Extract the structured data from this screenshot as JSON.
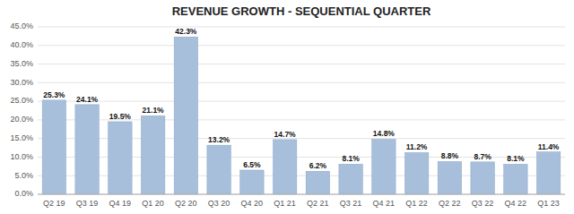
{
  "chart_data": {
    "type": "bar",
    "title": "REVENUE GROWTH - SEQUENTIAL QUARTER",
    "categories": [
      "Q2 19",
      "Q3 19",
      "Q4 19",
      "Q1 20",
      "Q2 20",
      "Q3 20",
      "Q4 20",
      "Q1 21",
      "Q2 21",
      "Q3 21",
      "Q4 21",
      "Q1 22",
      "Q2 22",
      "Q3 22",
      "Q4 22",
      "Q1 23"
    ],
    "values": [
      25.3,
      24.1,
      19.5,
      21.1,
      42.3,
      13.2,
      6.5,
      14.7,
      6.2,
      8.1,
      14.8,
      11.2,
      8.8,
      8.7,
      8.1,
      11.4
    ],
    "value_labels": [
      "25.3%",
      "24.1%",
      "19.5%",
      "21.1%",
      "42.3%",
      "13.2%",
      "6.5%",
      "14.7%",
      "6.2%",
      "8.1%",
      "14.8%",
      "11.2%",
      "8.8%",
      "8.7%",
      "8.1%",
      "11.4%"
    ],
    "data_labels": true,
    "color": "#a8bfdc",
    "ylim": [
      0,
      45
    ],
    "yticks": [
      {
        "value": 0.0,
        "label": "0.0%"
      },
      {
        "value": 5.0,
        "label": "5.0%"
      },
      {
        "value": 10.0,
        "label": "10.0%"
      },
      {
        "value": 15.0,
        "label": "15.0%"
      },
      {
        "value": 20.0,
        "label": "20.0%"
      },
      {
        "value": 25.0,
        "label": "25.0%"
      },
      {
        "value": 30.0,
        "label": "30.0%"
      },
      {
        "value": 35.0,
        "label": "35.0%"
      },
      {
        "value": 40.0,
        "label": "40.0%"
      },
      {
        "value": 45.0,
        "label": "45.0%"
      }
    ],
    "grid": true
  }
}
